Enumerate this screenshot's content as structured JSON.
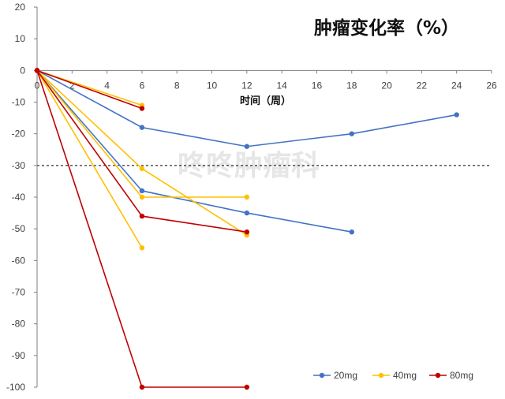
{
  "chart_data": {
    "type": "line",
    "title": "肿瘤变化率（%）",
    "xlabel": "时间（周）",
    "ylabel": "",
    "xlim": [
      0,
      26
    ],
    "ylim": [
      -100,
      20
    ],
    "x_ticks": [
      0,
      2,
      4,
      6,
      8,
      10,
      12,
      14,
      16,
      18,
      20,
      22,
      24,
      26
    ],
    "y_ticks": [
      20,
      10,
      0,
      -10,
      -20,
      -30,
      -40,
      -50,
      -60,
      -70,
      -80,
      -90,
      -100
    ],
    "reference_line": {
      "y": -30,
      "style": "dashed"
    },
    "grid": false,
    "legend_position": "bottom-right",
    "watermark": "咚咚肿瘤科",
    "groups": [
      {
        "name": "20mg",
        "color": "#4472C4",
        "lines": [
          [
            [
              0,
              0
            ],
            [
              6,
              -18
            ],
            [
              12,
              -24
            ],
            [
              18,
              -20
            ],
            [
              24,
              -14
            ]
          ],
          [
            [
              0,
              0
            ],
            [
              6,
              -38
            ],
            [
              12,
              -45
            ],
            [
              18,
              -51
            ]
          ]
        ]
      },
      {
        "name": "40mg",
        "color": "#FFC000",
        "lines": [
          [
            [
              0,
              0
            ],
            [
              6,
              -11
            ]
          ],
          [
            [
              0,
              0
            ],
            [
              6,
              -31
            ],
            [
              12,
              -52
            ]
          ],
          [
            [
              0,
              0
            ],
            [
              6,
              -40
            ],
            [
              12,
              -40
            ]
          ],
          [
            [
              0,
              0
            ],
            [
              6,
              -56
            ]
          ]
        ]
      },
      {
        "name": "80mg",
        "color": "#C00000",
        "lines": [
          [
            [
              0,
              0
            ],
            [
              6,
              -12
            ]
          ],
          [
            [
              0,
              0
            ],
            [
              6,
              -46
            ],
            [
              12,
              -51
            ]
          ],
          [
            [
              0,
              0
            ],
            [
              6,
              -100
            ],
            [
              12,
              -100
            ]
          ]
        ]
      }
    ]
  }
}
